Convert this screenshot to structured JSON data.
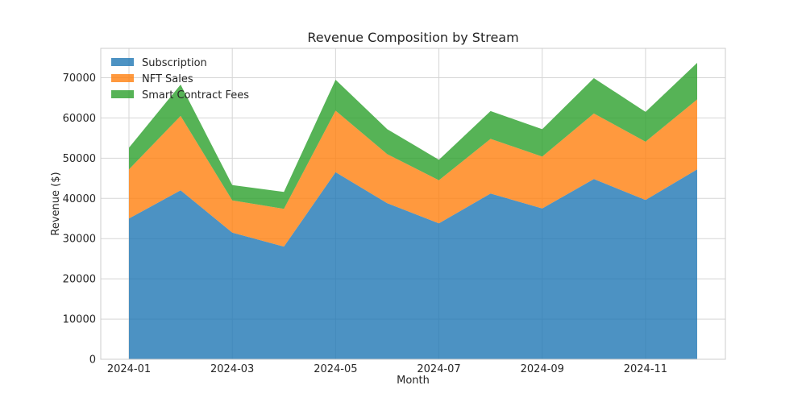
{
  "chart_data": {
    "type": "area",
    "stacked": true,
    "title": "Revenue Composition by Stream",
    "xlabel": "Month",
    "ylabel": "Revenue ($)",
    "x": [
      "2024-01",
      "2024-02",
      "2024-03",
      "2024-04",
      "2024-05",
      "2024-06",
      "2024-07",
      "2024-08",
      "2024-09",
      "2024-10",
      "2024-11",
      "2024-12"
    ],
    "xticks": [
      "2024-01",
      "2024-03",
      "2024-05",
      "2024-07",
      "2024-09",
      "2024-11"
    ],
    "yticks": [
      "0",
      "10000",
      "20000",
      "30000",
      "40000",
      "50000",
      "60000",
      "70000"
    ],
    "ylim": [
      0,
      77300
    ],
    "grid": true,
    "legend_position": "top-left",
    "series": [
      {
        "name": "Subscription",
        "color": "#1f77b4",
        "values": [
          35000,
          42000,
          31500,
          28000,
          46500,
          38800,
          33800,
          41200,
          37500,
          44800,
          39600,
          47200
        ]
      },
      {
        "name": "NFT Sales",
        "color": "#ff7f0e",
        "values": [
          12200,
          18500,
          8000,
          9400,
          15300,
          12200,
          10700,
          13600,
          12900,
          16300,
          14500,
          17400
        ]
      },
      {
        "name": "Smart Contract Fees",
        "color": "#2ca02c",
        "values": [
          5400,
          7800,
          3800,
          4200,
          7700,
          6200,
          5100,
          6900,
          6800,
          8800,
          7400,
          9100
        ]
      }
    ]
  }
}
